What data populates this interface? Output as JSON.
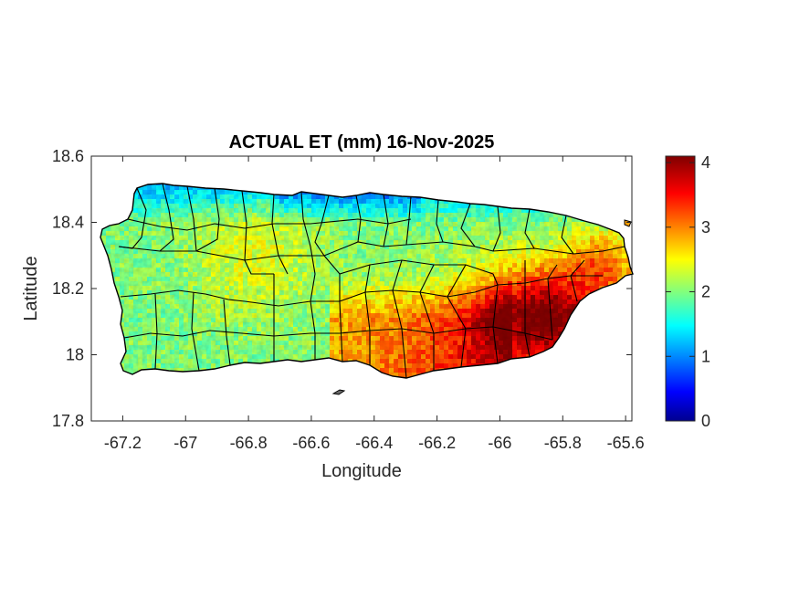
{
  "chart_data": {
    "type": "heatmap",
    "title": "ACTUAL ET (mm) 16-Nov-2025",
    "xlabel": "Longitude",
    "ylabel": "Latitude",
    "xlim": [
      -67.3,
      -65.58
    ],
    "ylim": [
      17.8,
      18.6
    ],
    "xticks": [
      -67.2,
      -67,
      -66.8,
      -66.6,
      -66.4,
      -66.2,
      -66,
      -65.8,
      -65.6
    ],
    "xtick_labels": [
      "-67.2",
      "-67",
      "-66.8",
      "-66.6",
      "-66.4",
      "-66.2",
      "-66",
      "-65.8",
      "-65.6"
    ],
    "yticks": [
      17.8,
      18,
      18.2,
      18.4,
      18.6
    ],
    "ytick_labels": [
      "17.8",
      "18",
      "18.2",
      "18.4",
      "18.6"
    ],
    "colorbar": {
      "colormap": "jet",
      "range": [
        0,
        4.1
      ],
      "ticks": [
        0,
        1,
        2,
        3,
        4
      ],
      "tick_labels": [
        "0",
        "1",
        "2",
        "3",
        "4"
      ]
    },
    "grid": false,
    "regions": [
      {
        "name": "north coast",
        "value_range": [
          0.5,
          1.5
        ]
      },
      {
        "name": "west and central interior",
        "value_range": [
          1.8,
          2.6
        ]
      },
      {
        "name": "south-central coast",
        "value_range": [
          2.8,
          3.3
        ]
      },
      {
        "name": "southeast",
        "value_range": [
          3.5,
          4.1
        ]
      }
    ]
  }
}
